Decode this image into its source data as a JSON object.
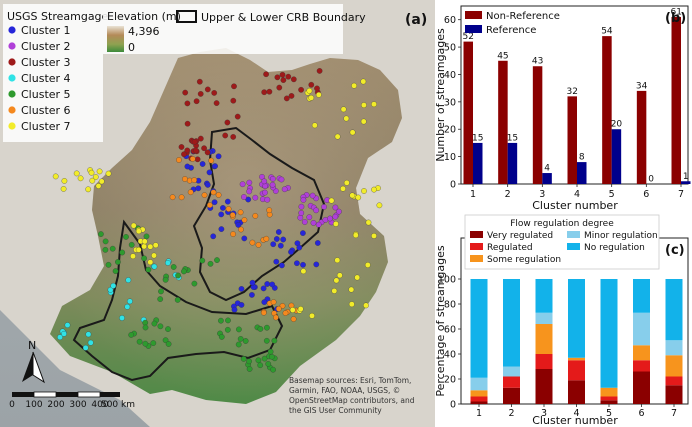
{
  "map": {
    "panel_label": "(a)",
    "legend": {
      "title": "USGS Streamgage",
      "clusters": [
        {
          "label": "Cluster 1",
          "color": "#2626d9"
        },
        {
          "label": "Cluster 2",
          "color": "#b040d8"
        },
        {
          "label": "Cluster 3",
          "color": "#9e1a1a"
        },
        {
          "label": "Cluster 4",
          "color": "#30e3e6"
        },
        {
          "label": "Cluster 5",
          "color": "#2e9a2e"
        },
        {
          "label": "Cluster 6",
          "color": "#f5891e"
        },
        {
          "label": "Cluster 7",
          "color": "#f2ec2a"
        }
      ],
      "elevation_title": "Elevation (m)",
      "elevation_max": "4,396",
      "elevation_min": "0",
      "boundary_label": "Upper & Lower CRB Boundary"
    },
    "north_label": "N",
    "scale_ticks": [
      "0",
      "100",
      "200",
      "300",
      "400",
      "500 km"
    ],
    "credits": [
      "Basemap sources: Esri, TomTom,",
      "Garmin, FAO, NOAA, USGS, ©",
      "OpenStreetMap contributors, and",
      "the GIS User Community"
    ]
  },
  "chart_data": [
    {
      "type": "bar",
      "panel_label": "(b)",
      "categories": [
        "1",
        "2",
        "3",
        "4",
        "5",
        "6",
        "7"
      ],
      "series": [
        {
          "name": "Non-Reference",
          "color": "#8b0000",
          "values": [
            52,
            45,
            43,
            32,
            54,
            34,
            61
          ]
        },
        {
          "name": "Reference",
          "color": "#00008b",
          "values": [
            15,
            15,
            4,
            8,
            20,
            0,
            1
          ]
        }
      ],
      "xlabel": "Cluster number",
      "ylabel": "Number of streamgages",
      "ylim": [
        0,
        65
      ],
      "yticks": [
        "0",
        "10",
        "20",
        "30",
        "40",
        "50",
        "60"
      ],
      "legend_position": "top-left"
    },
    {
      "type": "bar",
      "stacked": true,
      "panel_label": "(c)",
      "categories": [
        "1",
        "2",
        "3",
        "4",
        "5",
        "6",
        "7"
      ],
      "legend_title": "Flow regulation degree",
      "series": [
        {
          "name": "Very regulated",
          "color": "#8b0000",
          "values": [
            2,
            13,
            28,
            19,
            3,
            26,
            15
          ]
        },
        {
          "name": "Regulated",
          "color": "#e41a1a",
          "values": [
            4,
            9,
            12,
            16,
            3,
            9,
            7
          ]
        },
        {
          "name": "Some regulation",
          "color": "#f7941d",
          "values": [
            5,
            0,
            24,
            2,
            7,
            12,
            17
          ]
        },
        {
          "name": "Minor regulation",
          "color": "#87ceeb",
          "values": [
            10,
            8,
            9,
            0,
            0,
            26,
            12
          ]
        },
        {
          "name": "No regulation",
          "color": "#12b2ea",
          "values": [
            79,
            70,
            27,
            63,
            87,
            27,
            49
          ]
        }
      ],
      "xlabel": "Cluster number",
      "ylabel": "Percentage of streamgages",
      "ylim": [
        0,
        100
      ],
      "yticks": [
        "0",
        "20",
        "40",
        "60",
        "80",
        "100"
      ],
      "legend_position": "top"
    }
  ]
}
